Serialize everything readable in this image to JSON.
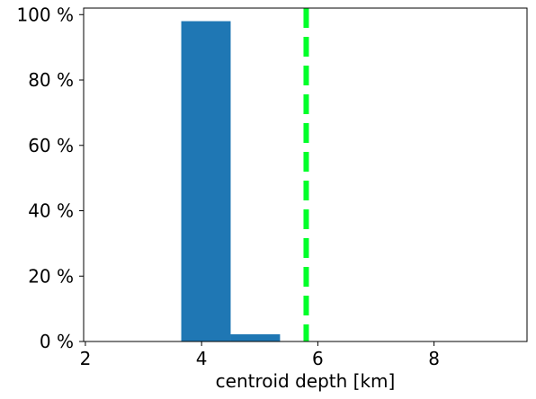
{
  "chart_data": {
    "type": "bar",
    "subtype": "histogram",
    "title": "",
    "xlabel": "centroid depth [km]",
    "ylabel": "",
    "xlim": [
      1.97,
      9.6
    ],
    "ylim": [
      0,
      1.02
    ],
    "x_ticks": [
      2,
      4,
      6,
      8
    ],
    "x_tick_labels": [
      "2",
      "4",
      "6",
      "8"
    ],
    "y_ticks": [
      0,
      0.2,
      0.4,
      0.6,
      0.8,
      1.0
    ],
    "y_tick_labels": [
      "0 %",
      "20 %",
      "40 %",
      "60 %",
      "80 %",
      "100 %"
    ],
    "bins": [
      {
        "x0": 3.65,
        "x1": 4.5,
        "value": 0.98
      },
      {
        "x0": 4.5,
        "x1": 5.35,
        "value": 0.022
      }
    ],
    "reference_line": {
      "x": 5.8,
      "style": "dashed",
      "color": "#00ff2a"
    },
    "bar_color": "#1f77b4",
    "grid": false,
    "legend": "none"
  }
}
